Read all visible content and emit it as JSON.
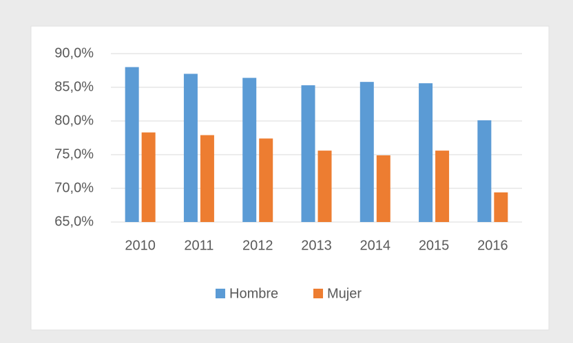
{
  "chart_data": {
    "type": "bar",
    "categories": [
      "2010",
      "2011",
      "2012",
      "2013",
      "2014",
      "2015",
      "2016"
    ],
    "series": [
      {
        "name": "Hombre",
        "color": "#5b9bd5",
        "values": [
          88.0,
          87.0,
          86.4,
          85.3,
          85.8,
          85.6,
          80.1
        ]
      },
      {
        "name": "Mujer",
        "color": "#ed7d31",
        "values": [
          78.3,
          77.9,
          77.4,
          75.6,
          74.9,
          75.6,
          69.4
        ]
      }
    ],
    "ylim": [
      65,
      90
    ],
    "yticks": [
      {
        "value": 65,
        "label": "65,0%"
      },
      {
        "value": 70,
        "label": "70,0%"
      },
      {
        "value": 75,
        "label": "75,0%"
      },
      {
        "value": 80,
        "label": "80,0%"
      },
      {
        "value": 85,
        "label": "85,0%"
      },
      {
        "value": 90,
        "label": "90,0%"
      }
    ],
    "grid": true,
    "legend": "bottom"
  }
}
